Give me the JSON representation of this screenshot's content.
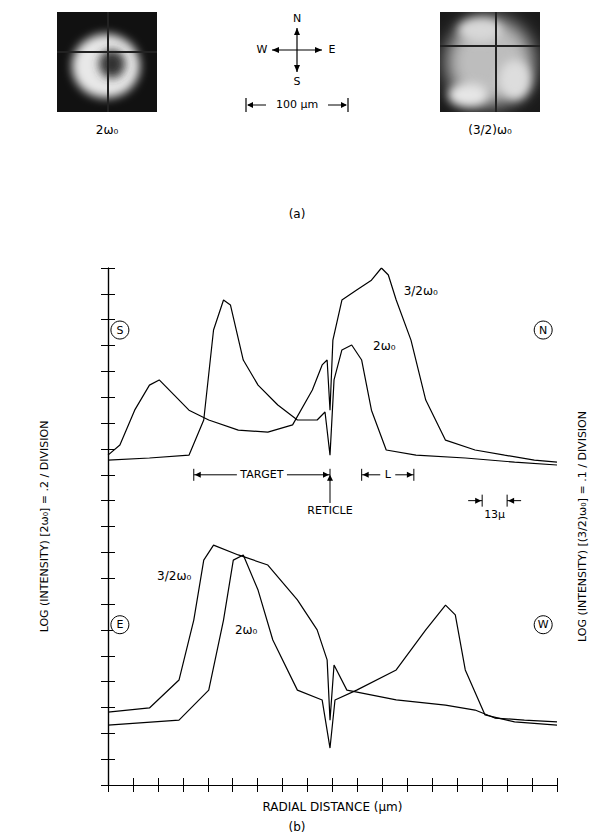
{
  "figure_a": {
    "label": "(a)",
    "images": [
      {
        "caption": "2ω₀"
      },
      {
        "caption": "(3/2)ω₀"
      }
    ],
    "compass": {
      "N": "N",
      "S": "S",
      "E": "E",
      "W": "W"
    },
    "scale_bar": "100 μm"
  },
  "chart_data": {
    "type": "line",
    "label": "(b)",
    "x_label": "RADIAL DISTANCE (μm)",
    "y_label": "LOG (INTENSITY) [2ω₀] = .2 / DIVISION",
    "y2_label": "LOG (INTENSITY) [(3/2)ω₀] = .1 / DIVISION",
    "xlim": [
      0,
      234
    ],
    "xticks": [
      0,
      13,
      26,
      39,
      52,
      65,
      78,
      91,
      104,
      117,
      130,
      143,
      156,
      169,
      182,
      195,
      208,
      221,
      234
    ],
    "ylim": [
      0,
      20
    ],
    "yticks": [
      0,
      1,
      2,
      3,
      4,
      5,
      6,
      7,
      8,
      9,
      10,
      11,
      12,
      13,
      14,
      15,
      16,
      17,
      18,
      19,
      20
    ],
    "y2lim": [
      0,
      20
    ],
    "y2ticks": [
      0,
      1,
      2,
      3,
      4,
      5,
      6,
      7,
      8,
      9,
      10,
      11,
      12,
      13,
      14,
      15,
      16,
      17,
      18,
      19,
      20
    ],
    "tick_labels": false,
    "grid": false,
    "series": [
      {
        "name": "3/2ω₀",
        "axis": "y2",
        "color": "#000000",
        "label_pos": [
          163,
          19.1
        ],
        "x": [
          0,
          6.2,
          13.9,
          21.6,
          26.7,
          34.4,
          42.2,
          52.5,
          67.9,
          83.3,
          96.2,
          106.5,
          111.6,
          114.2,
          115.7,
          117.2,
          121.9,
          129.6,
          137.3,
          142.5,
          146.1,
          150.2,
          157.9,
          165.6,
          175.9,
          191.3,
          206.7,
          222.2,
          234
        ],
        "values": [
          12.76,
          13.15,
          14.5,
          15.47,
          15.67,
          15.09,
          14.5,
          14.12,
          13.73,
          13.65,
          13.93,
          15.28,
          16.25,
          16.44,
          14.5,
          17.21,
          18.76,
          19.15,
          19.53,
          20.0,
          19.73,
          18.76,
          17.21,
          14.89,
          13.34,
          12.96,
          12.76,
          12.57,
          12.49
        ]
      },
      {
        "name": "2ω₀",
        "color": "#000000",
        "label_pos": [
          144,
          17.0
        ],
        "x": [
          0,
          21.6,
          42.2,
          49.9,
          55.0,
          60.2,
          63.8,
          70.5,
          78.2,
          88.5,
          98.7,
          109.0,
          113.1,
          115.7,
          117.8,
          121.9,
          127.0,
          132.2,
          137.3,
          145.0,
          160.5,
          186.2,
          211.9,
          234
        ],
        "values": [
          12.57,
          12.65,
          12.76,
          14.12,
          17.6,
          18.76,
          18.57,
          16.44,
          15.47,
          14.7,
          14.12,
          14.12,
          14.43,
          12.76,
          15.67,
          16.83,
          17.02,
          16.44,
          14.5,
          12.96,
          12.76,
          12.65,
          12.49,
          12.38
        ]
      },
      {
        "name": "3/2ω₀",
        "axis": "y2",
        "color": "#000000",
        "label_pos": [
          34.5,
          8.1
        ],
        "x": [
          0,
          21.6,
          37.0,
          44.7,
          49.9,
          55.0,
          67.9,
          83.3,
          98.7,
          109.0,
          114.2,
          115.7,
          117.8,
          124.5,
          150.2,
          175.9,
          191.3,
          201.6,
          217.0,
          234
        ],
        "values": [
          2.82,
          2.98,
          4.06,
          6.38,
          8.7,
          9.28,
          8.9,
          8.51,
          7.16,
          6.0,
          4.84,
          2.51,
          4.64,
          3.67,
          3.29,
          3.09,
          2.9,
          2.59,
          2.51,
          2.44
        ]
      },
      {
        "name": "2ω₀",
        "color": "#000000",
        "label_pos": [
          72,
          6.0
        ],
        "x": [
          0,
          37.0,
          52.5,
          60.2,
          65.3,
          70.5,
          78.2,
          85.9,
          98.7,
          111.6,
          115.7,
          118.3,
          129.6,
          150.2,
          165.6,
          175.9,
          181.0,
          186.2,
          196.5,
          211.9,
          234
        ],
        "values": [
          2.32,
          2.51,
          3.67,
          6.38,
          8.7,
          8.9,
          7.54,
          5.61,
          3.67,
          3.29,
          1.43,
          3.29,
          3.67,
          4.45,
          6.0,
          6.96,
          6.58,
          4.45,
          2.71,
          2.44,
          2.32
        ]
      }
    ],
    "circled_labels": [
      {
        "text": "S",
        "x": 6.2,
        "y": 17.6
      },
      {
        "text": "N",
        "x": 226.8,
        "y": 17.6
      },
      {
        "text": "E",
        "x": 6.2,
        "y": 6.2
      },
      {
        "text": "W",
        "x": 226.8,
        "y": 6.2
      }
    ],
    "brackets": [
      {
        "text": "TARGET",
        "x": [
          44.7,
          115.7
        ],
        "y": 12.0
      },
      {
        "text": "L",
        "x": [
          132.2,
          159.4
        ],
        "y": 12.0
      },
      {
        "text": "13μ",
        "x": [
          195,
          208
        ],
        "y": 11.0
      }
    ],
    "pointer": {
      "text": "RETICLE",
      "x": 115.7,
      "y": 10.6,
      "to": 12.0
    }
  }
}
